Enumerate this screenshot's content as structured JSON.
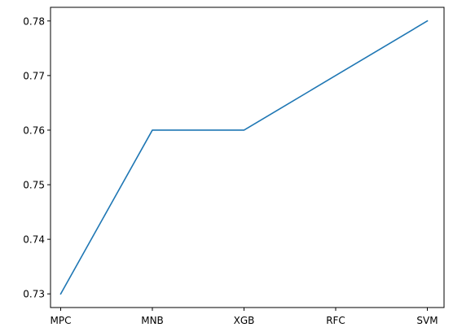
{
  "chart_data": {
    "type": "line",
    "categories": [
      "MPC",
      "MNB",
      "XGB",
      "RFC",
      "SVM"
    ],
    "series": [
      {
        "values": [
          0.73,
          0.76,
          0.76,
          0.77,
          0.78
        ],
        "color": "#1f77b4"
      }
    ],
    "y_ticks": [
      0.73,
      0.74,
      0.75,
      0.76,
      0.77,
      0.78
    ],
    "y_tick_labels": [
      "0.73",
      "0.74",
      "0.75",
      "0.76",
      "0.77",
      "0.78"
    ],
    "ylim": [
      0.7275,
      0.7825
    ],
    "grid": false,
    "title": "",
    "xlabel": "",
    "ylabel": ""
  }
}
